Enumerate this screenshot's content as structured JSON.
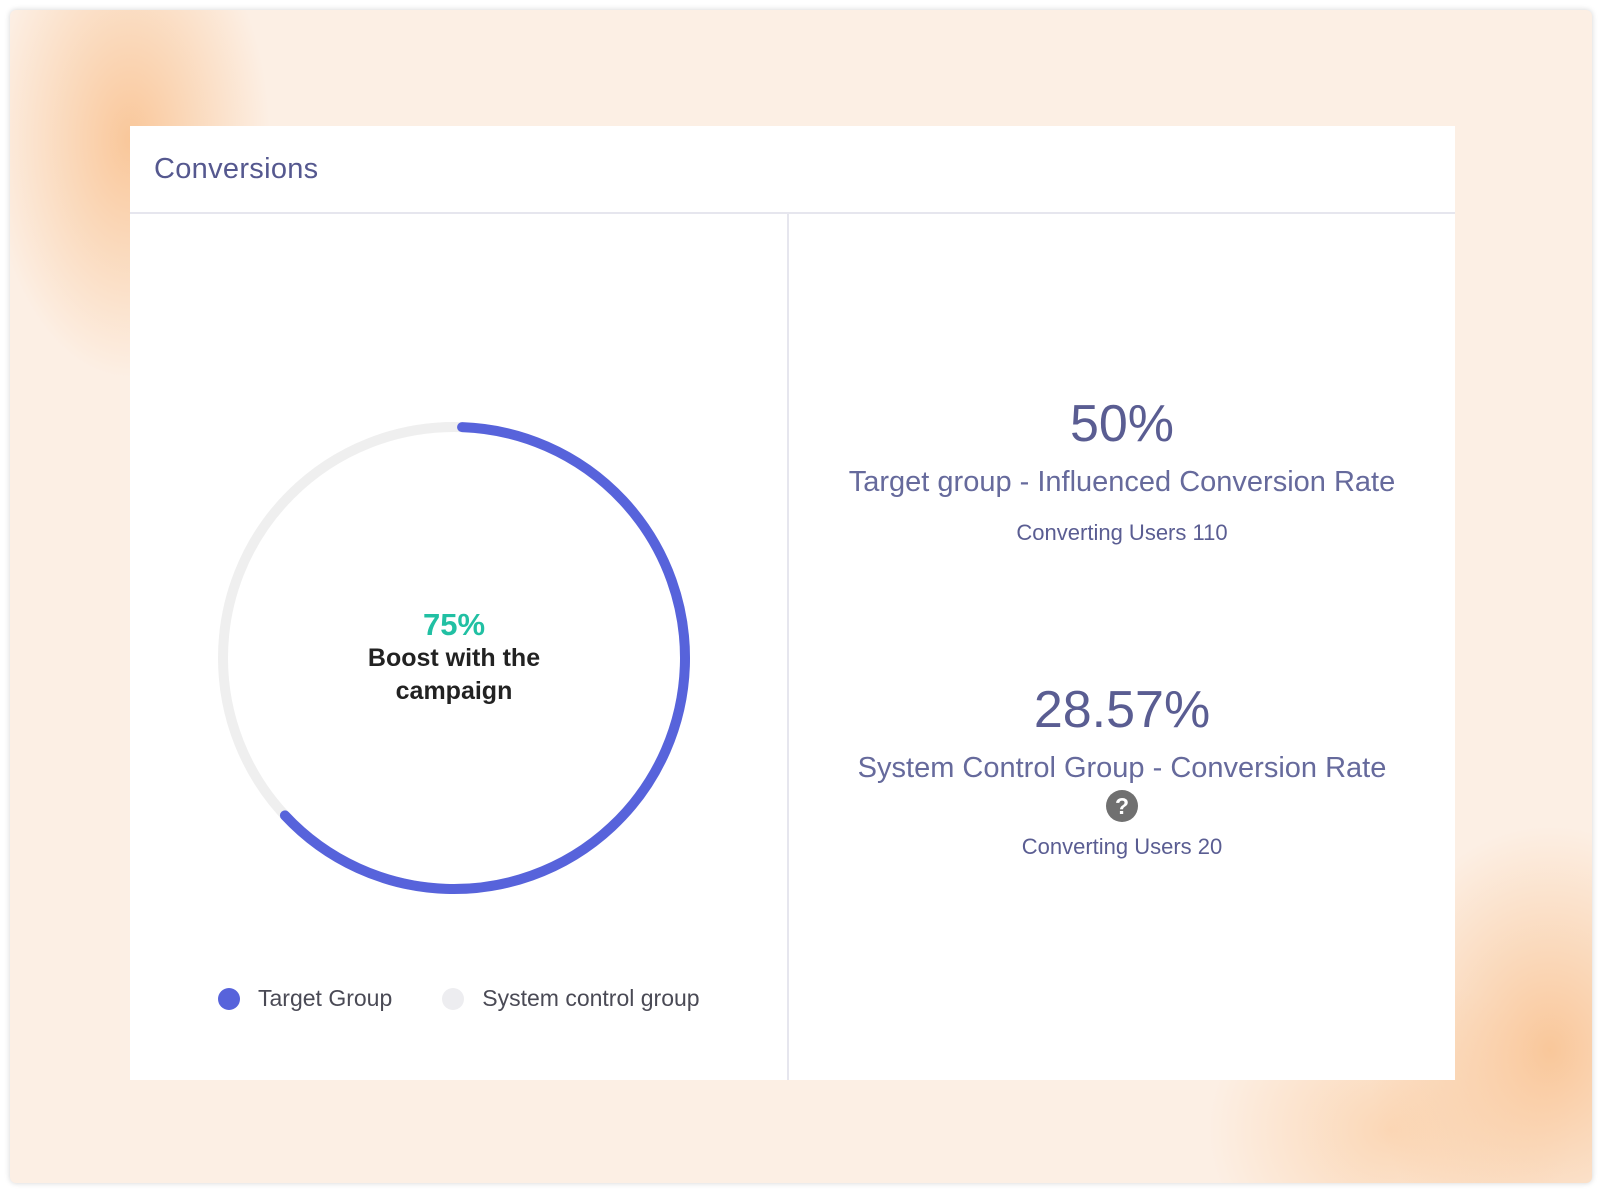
{
  "card": {
    "title": "Conversions"
  },
  "donut": {
    "boost_value": "75%",
    "boost_label": "Boost with the campaign",
    "target_share": 0.625,
    "colors": {
      "target": "#5763db",
      "control": "#efefef"
    }
  },
  "legend": [
    {
      "label": "Target Group",
      "color": "#5763db"
    },
    {
      "label": "System control group",
      "color": "#ededf0"
    }
  ],
  "metrics": {
    "target": {
      "value": "50%",
      "label": "Target group - Influenced Conversion Rate",
      "users": "Converting Users 110"
    },
    "control": {
      "value": "28.57%",
      "label": "System Control Group - Conversion Rate",
      "help_icon": "question-circle-icon",
      "users": "Converting Users 20"
    }
  }
}
